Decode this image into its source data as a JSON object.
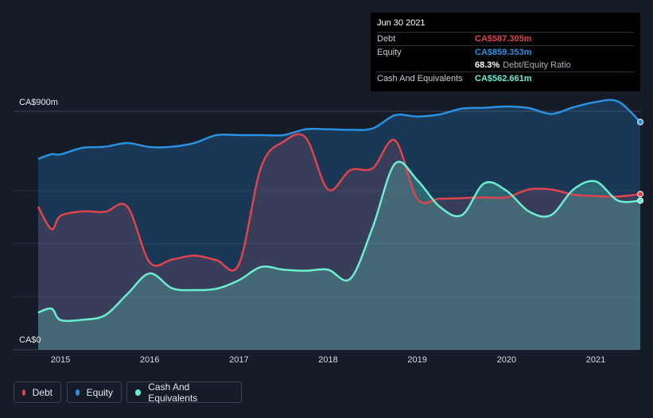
{
  "chart_data": {
    "type": "area",
    "x": [
      2014.75,
      2014.9,
      2015.0,
      2015.25,
      2015.5,
      2015.75,
      2016.0,
      2016.25,
      2016.5,
      2016.75,
      2017.0,
      2017.25,
      2017.5,
      2017.75,
      2018.0,
      2018.25,
      2018.5,
      2018.75,
      2019.0,
      2019.25,
      2019.5,
      2019.75,
      2020.0,
      2020.25,
      2020.5,
      2020.75,
      2021.0,
      2021.25,
      2021.5
    ],
    "ylim": [
      0,
      900
    ],
    "y_ticks": [
      "CA$900m",
      "CA$0"
    ],
    "x_ticks": [
      "2015",
      "2016",
      "2017",
      "2018",
      "2019",
      "2020",
      "2021"
    ],
    "x_tick_values": [
      2015,
      2016,
      2017,
      2018,
      2019,
      2020,
      2021
    ],
    "series": [
      {
        "name": "Debt",
        "color": "#e0434d",
        "values": [
          540,
          455,
          505,
          522,
          520,
          540,
          330,
          340,
          355,
          338,
          322,
          690,
          785,
          800,
          605,
          678,
          685,
          790,
          570,
          570,
          572,
          575,
          575,
          605,
          605,
          585,
          580,
          578,
          587.305
        ]
      },
      {
        "name": "Equity",
        "color": "#2b90e0",
        "values": [
          720,
          738,
          737,
          762,
          766,
          780,
          765,
          766,
          780,
          810,
          810,
          810,
          810,
          832,
          832,
          830,
          835,
          885,
          880,
          888,
          910,
          913,
          918,
          912,
          890,
          915,
          935,
          937,
          859.353
        ]
      },
      {
        "name": "Cash And Equivalents",
        "color": "#6cecd0",
        "values": [
          140,
          155,
          112,
          113,
          130,
          210,
          288,
          232,
          225,
          230,
          262,
          312,
          302,
          298,
          302,
          268,
          462,
          702,
          640,
          540,
          508,
          628,
          600,
          522,
          508,
          605,
          635,
          562.661,
          562.661
        ]
      }
    ],
    "tooltip": {
      "date": "Jun 30 2021",
      "rows": [
        {
          "label": "Debt",
          "value": "CA$587.305m",
          "color": "#e0434d"
        },
        {
          "label": "Equity",
          "value": "CA$859.353m",
          "color": "#2b90e0"
        },
        {
          "label": "",
          "value": "68.3%",
          "suffix": "Debt/Equity Ratio",
          "color": "#ffffff"
        },
        {
          "label": "Cash And Equivalents",
          "value": "CA$562.661m",
          "color": "#6cecd0"
        }
      ]
    },
    "legend": [
      {
        "label": "Debt",
        "color": "#e0434d"
      },
      {
        "label": "Equity",
        "color": "#2b90e0"
      },
      {
        "label": "Cash And Equivalents",
        "color": "#6cecd0"
      }
    ]
  }
}
